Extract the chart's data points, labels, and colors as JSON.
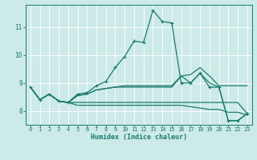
{
  "xlabel": "Humidex (Indice chaleur)",
  "bg_color": "#cceae7",
  "line_color": "#1a7a6e",
  "grid_color": "#ffffff",
  "xlim": [
    -0.5,
    23.5
  ],
  "ylim": [
    7.5,
    11.8
  ],
  "xticks": [
    0,
    1,
    2,
    3,
    4,
    5,
    6,
    7,
    8,
    9,
    10,
    11,
    12,
    13,
    14,
    15,
    16,
    17,
    18,
    19,
    20,
    21,
    22,
    23
  ],
  "yticks": [
    8,
    9,
    10,
    11
  ],
  "line1": {
    "x": [
      0,
      1,
      2,
      3,
      4,
      5,
      6,
      7,
      8,
      9,
      10,
      11,
      12,
      13,
      14,
      15,
      16,
      17,
      18,
      19,
      20,
      21,
      22,
      23
    ],
    "y": [
      8.85,
      8.4,
      8.6,
      8.35,
      8.3,
      8.6,
      8.65,
      8.9,
      9.05,
      9.55,
      9.95,
      10.5,
      10.45,
      11.6,
      11.2,
      11.15,
      9.0,
      9.0,
      9.35,
      8.85,
      8.85,
      7.65,
      7.65,
      7.9
    ],
    "marker": true
  },
  "line2": {
    "x": [
      0,
      1,
      2,
      3,
      4,
      5,
      6,
      7,
      8,
      9,
      10,
      11,
      12,
      13,
      14,
      15,
      16,
      17,
      18,
      19,
      20,
      21,
      22,
      23
    ],
    "y": [
      8.85,
      8.4,
      8.6,
      8.35,
      8.3,
      8.55,
      8.6,
      8.75,
      8.8,
      8.85,
      8.9,
      8.9,
      8.9,
      8.9,
      8.9,
      8.9,
      9.25,
      9.3,
      9.55,
      9.25,
      8.9,
      8.9,
      8.9,
      8.9
    ],
    "marker": false
  },
  "line3": {
    "x": [
      2,
      3,
      4,
      5,
      6,
      7,
      8,
      9,
      10,
      11,
      12,
      13,
      14,
      15,
      16,
      17,
      18,
      19,
      20,
      21,
      22,
      23
    ],
    "y": [
      8.6,
      8.35,
      8.3,
      8.55,
      8.6,
      8.75,
      8.8,
      8.85,
      8.85,
      8.85,
      8.85,
      8.85,
      8.85,
      8.85,
      9.25,
      9.0,
      9.35,
      9.0,
      8.85,
      7.65,
      7.65,
      7.9
    ],
    "marker": false
  },
  "line4": {
    "x": [
      0,
      1,
      2,
      3,
      4,
      5,
      6,
      7,
      8,
      9,
      10,
      11,
      12,
      13,
      14,
      15,
      16,
      17,
      18,
      19,
      20,
      21,
      22,
      23
    ],
    "y": [
      8.85,
      8.4,
      8.6,
      8.35,
      8.3,
      8.2,
      8.2,
      8.2,
      8.2,
      8.2,
      8.2,
      8.2,
      8.2,
      8.2,
      8.2,
      8.2,
      8.2,
      8.15,
      8.1,
      8.05,
      8.05,
      7.95,
      7.95,
      7.85
    ],
    "marker": false
  },
  "line5": {
    "x": [
      0,
      1,
      2,
      3,
      4,
      5,
      6,
      7,
      8,
      9,
      10,
      11,
      12,
      13,
      14,
      15,
      16,
      17,
      18,
      19,
      20,
      21,
      22,
      23
    ],
    "y": [
      8.85,
      8.4,
      8.6,
      8.35,
      8.3,
      8.3,
      8.3,
      8.3,
      8.3,
      8.3,
      8.3,
      8.3,
      8.3,
      8.3,
      8.3,
      8.3,
      8.3,
      8.3,
      8.3,
      8.3,
      8.3,
      8.3,
      8.3,
      7.9
    ],
    "marker": false
  }
}
